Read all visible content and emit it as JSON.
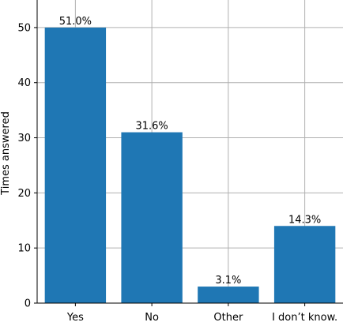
{
  "chart_data": {
    "type": "bar",
    "categories": [
      "Yes",
      "No",
      "Other",
      "I don’t know."
    ],
    "values": [
      50,
      31,
      3,
      14
    ],
    "data_labels": [
      "51.0%",
      "31.6%",
      "3.1%",
      "14.3%"
    ],
    "title": "",
    "xlabel": "",
    "ylabel": "Times answered",
    "ylim": [
      0,
      55
    ],
    "yticks": [
      0,
      10,
      20,
      30,
      40,
      50
    ],
    "grid": true,
    "bar_color": "#1f77b4",
    "grid_color": "#b0b0b0"
  }
}
